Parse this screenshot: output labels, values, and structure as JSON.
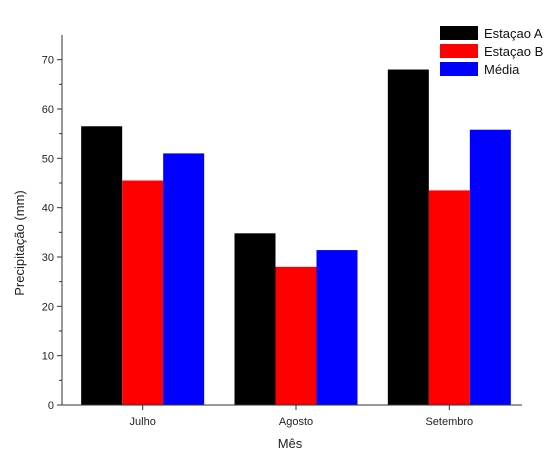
{
  "chart_data": {
    "type": "bar",
    "title": "",
    "xlabel": "Mês",
    "ylabel": "Precipitação (mm)",
    "categories": [
      "Julho",
      "Agosto",
      "Setembro"
    ],
    "series": [
      {
        "name": "Estaçao A",
        "color": "#000000",
        "values": [
          56.5,
          34.8,
          68.0
        ]
      },
      {
        "name": "Estaçao B",
        "color": "#ff0000",
        "values": [
          45.5,
          28.0,
          43.5
        ]
      },
      {
        "name": "Média",
        "color": "#0000ff",
        "values": [
          51.0,
          31.4,
          55.8
        ]
      }
    ],
    "ylim": [
      0,
      75
    ],
    "yticks": [
      "0",
      "10",
      "20",
      "30",
      "40",
      "50",
      "60",
      "70"
    ],
    "grid": false,
    "legend_position": "top-right"
  }
}
